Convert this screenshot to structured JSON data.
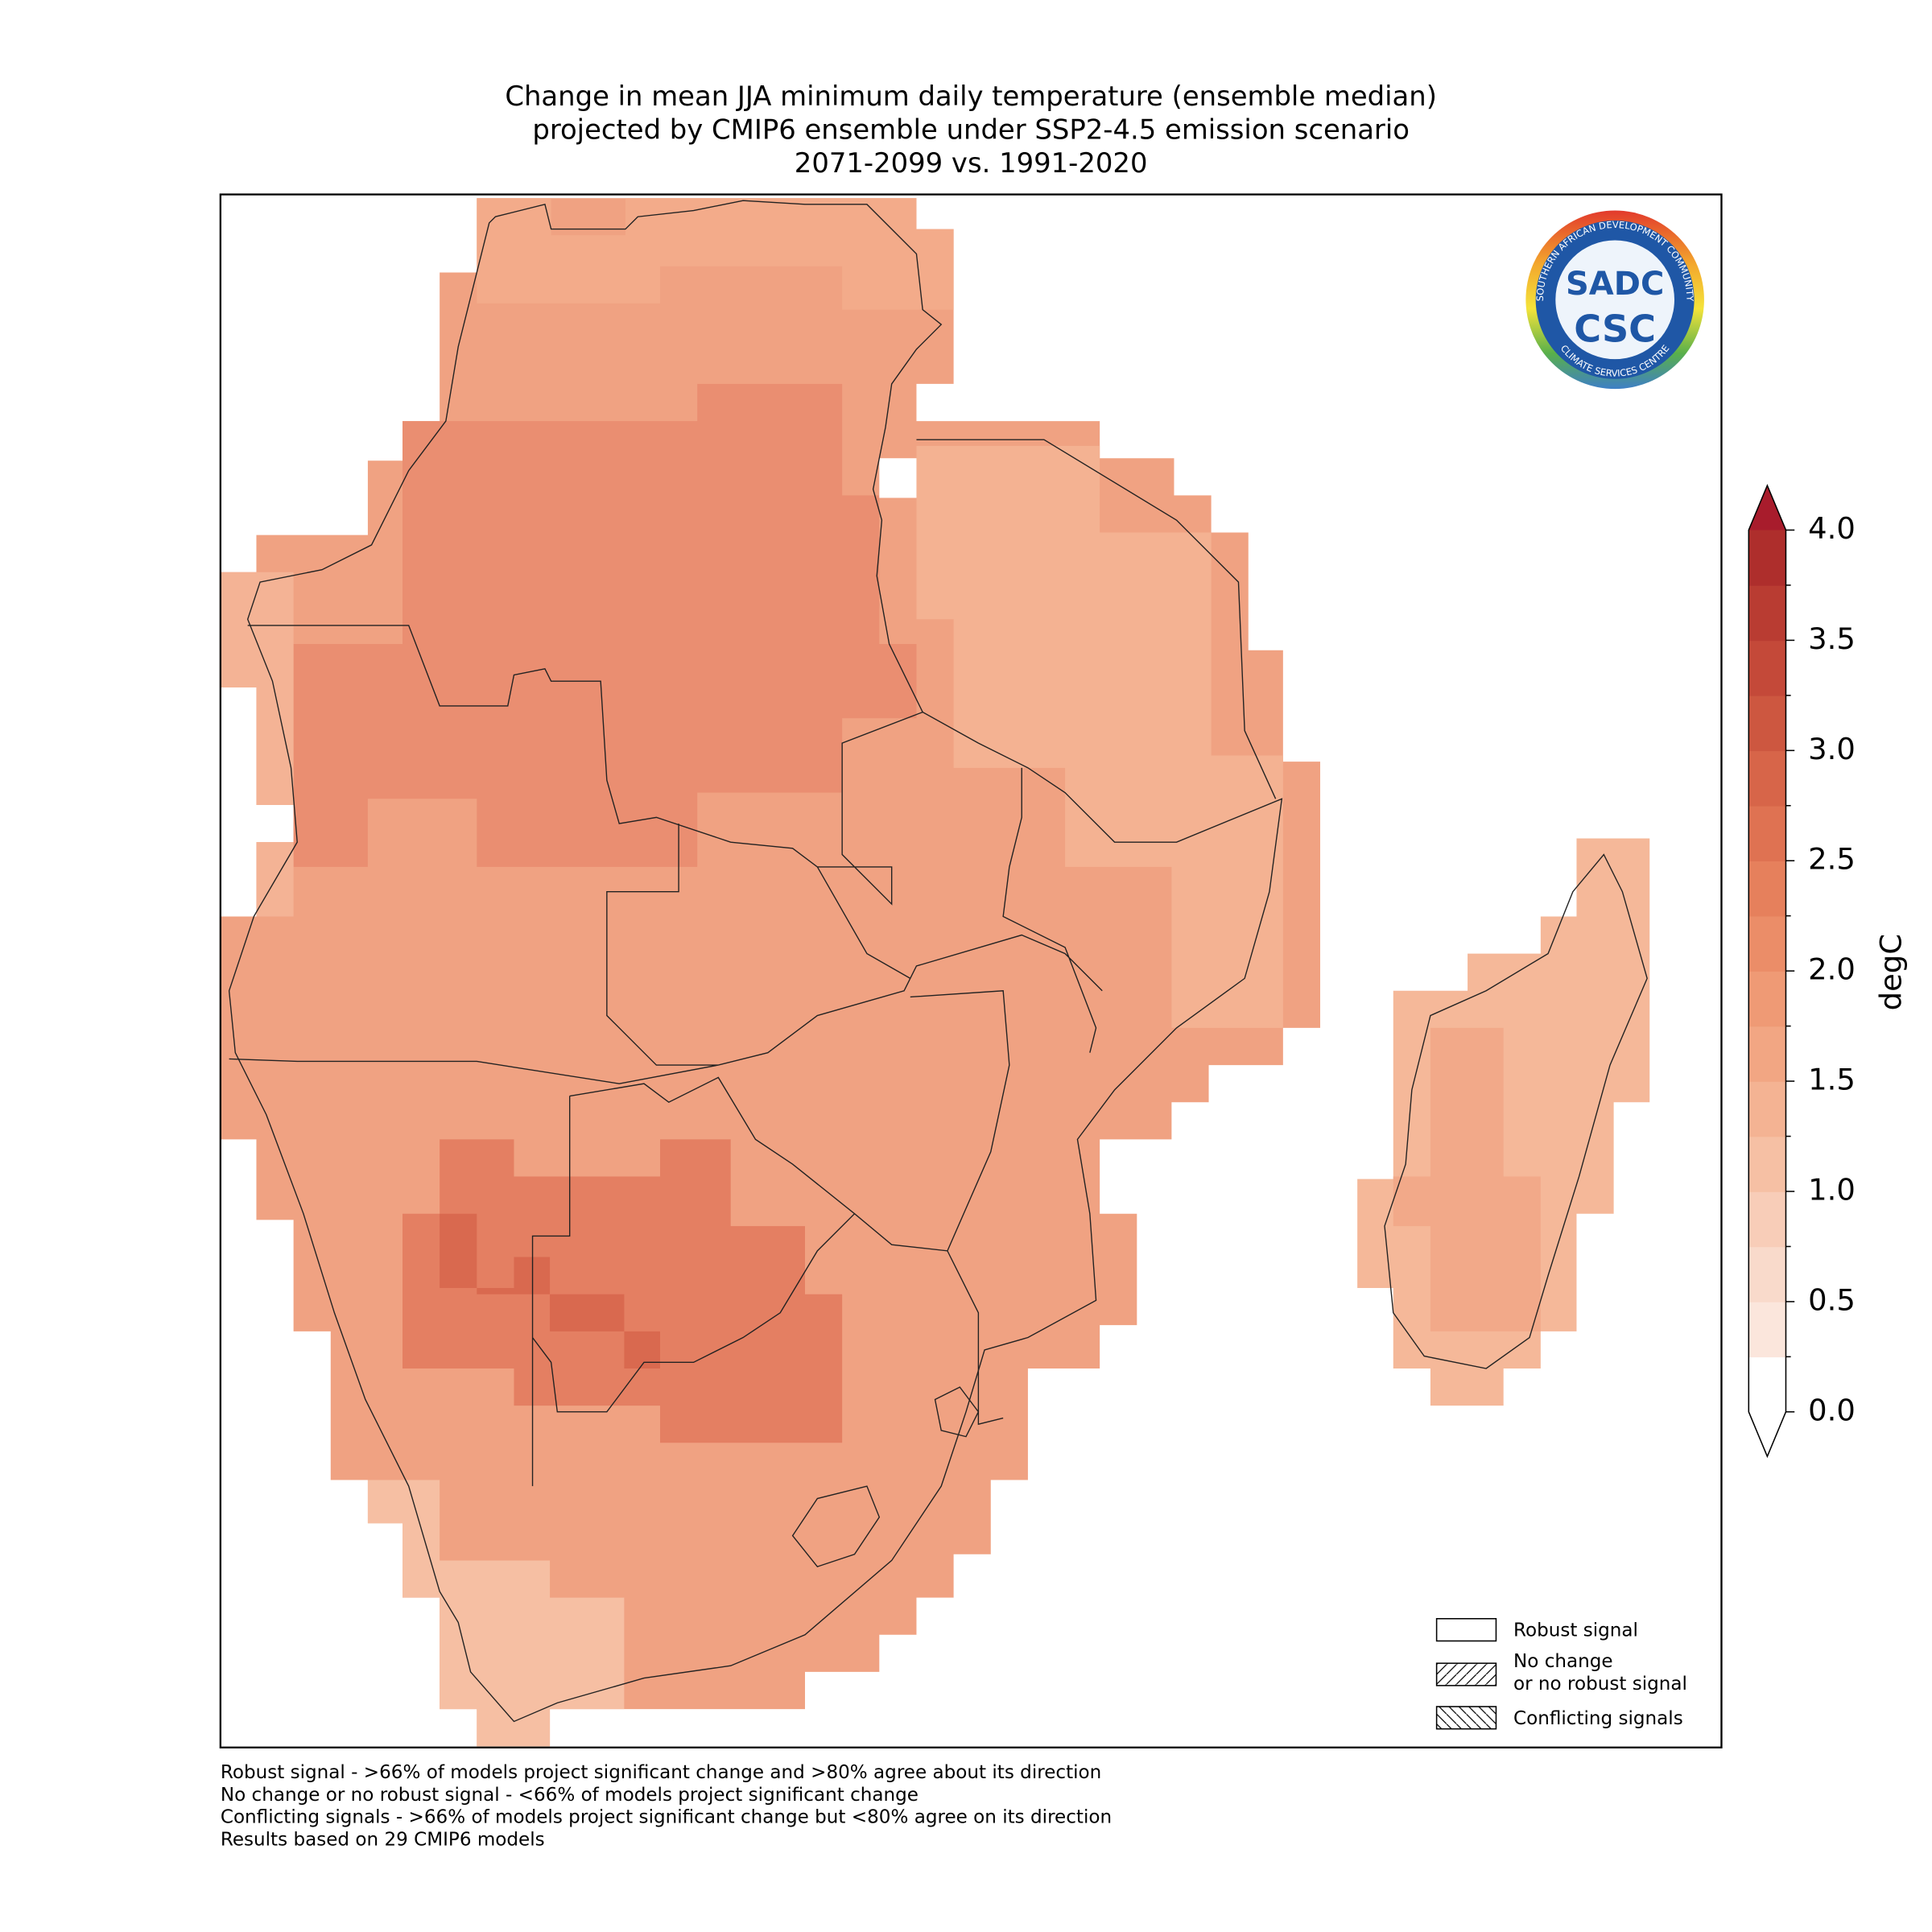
{
  "title": [
    "Change in mean JJA minimum daily temperature (ensemble median)",
    "projected by CMIP6 ensemble under SSP2-4.5 emission scenario",
    "2071-2099 vs. 1991-2020"
  ],
  "logo": {
    "center_top": "SADC",
    "center_bottom": "CSC",
    "ring_top": "SOUTHERN AFRICAN DEVELOPMENT COMMUNITY",
    "ring_bottom": "CLIMATE SERVICES CENTRE"
  },
  "colorbar": {
    "label": "degC",
    "ticks": [
      {
        "value": 0,
        "label": "0.0"
      },
      {
        "value": 0.5,
        "label": "0.5"
      },
      {
        "value": 1,
        "label": "1.0"
      },
      {
        "value": 1.5,
        "label": "1.5"
      },
      {
        "value": 2,
        "label": "2.0"
      },
      {
        "value": 2.5,
        "label": "2.5"
      },
      {
        "value": 3,
        "label": "3.0"
      },
      {
        "value": 3.5,
        "label": "3.5"
      },
      {
        "value": 4,
        "label": "4.0"
      }
    ],
    "colors": [
      "#ffffff",
      "#fbe6dc",
      "#f9dacb",
      "#f8cdb8",
      "#f6c0a4",
      "#f4b393",
      "#f2a683",
      "#ef9a75",
      "#eb8d68",
      "#e6805c",
      "#df7252",
      "#d76549",
      "#cd5740",
      "#c44939",
      "#b93c32",
      "#ae2e2c"
    ],
    "under_color": "#ffffff",
    "over_color": "#a81c2c"
  },
  "legend": [
    {
      "lines": [
        "Robust signal"
      ]
    },
    {
      "lines": [
        "No change",
        "or no robust signal"
      ]
    },
    {
      "lines": [
        "Conflicting signals"
      ]
    }
  ],
  "footnotes": [
    "Robust signal - >66% of models project significant change and >80% agree about its direction",
    "No change or no robust signal - <66% of models project significant change",
    "Conflicting signals - >66% of models project significant change but <80% agree on its direction",
    "Results based on 29 CMIP6 models"
  ]
}
